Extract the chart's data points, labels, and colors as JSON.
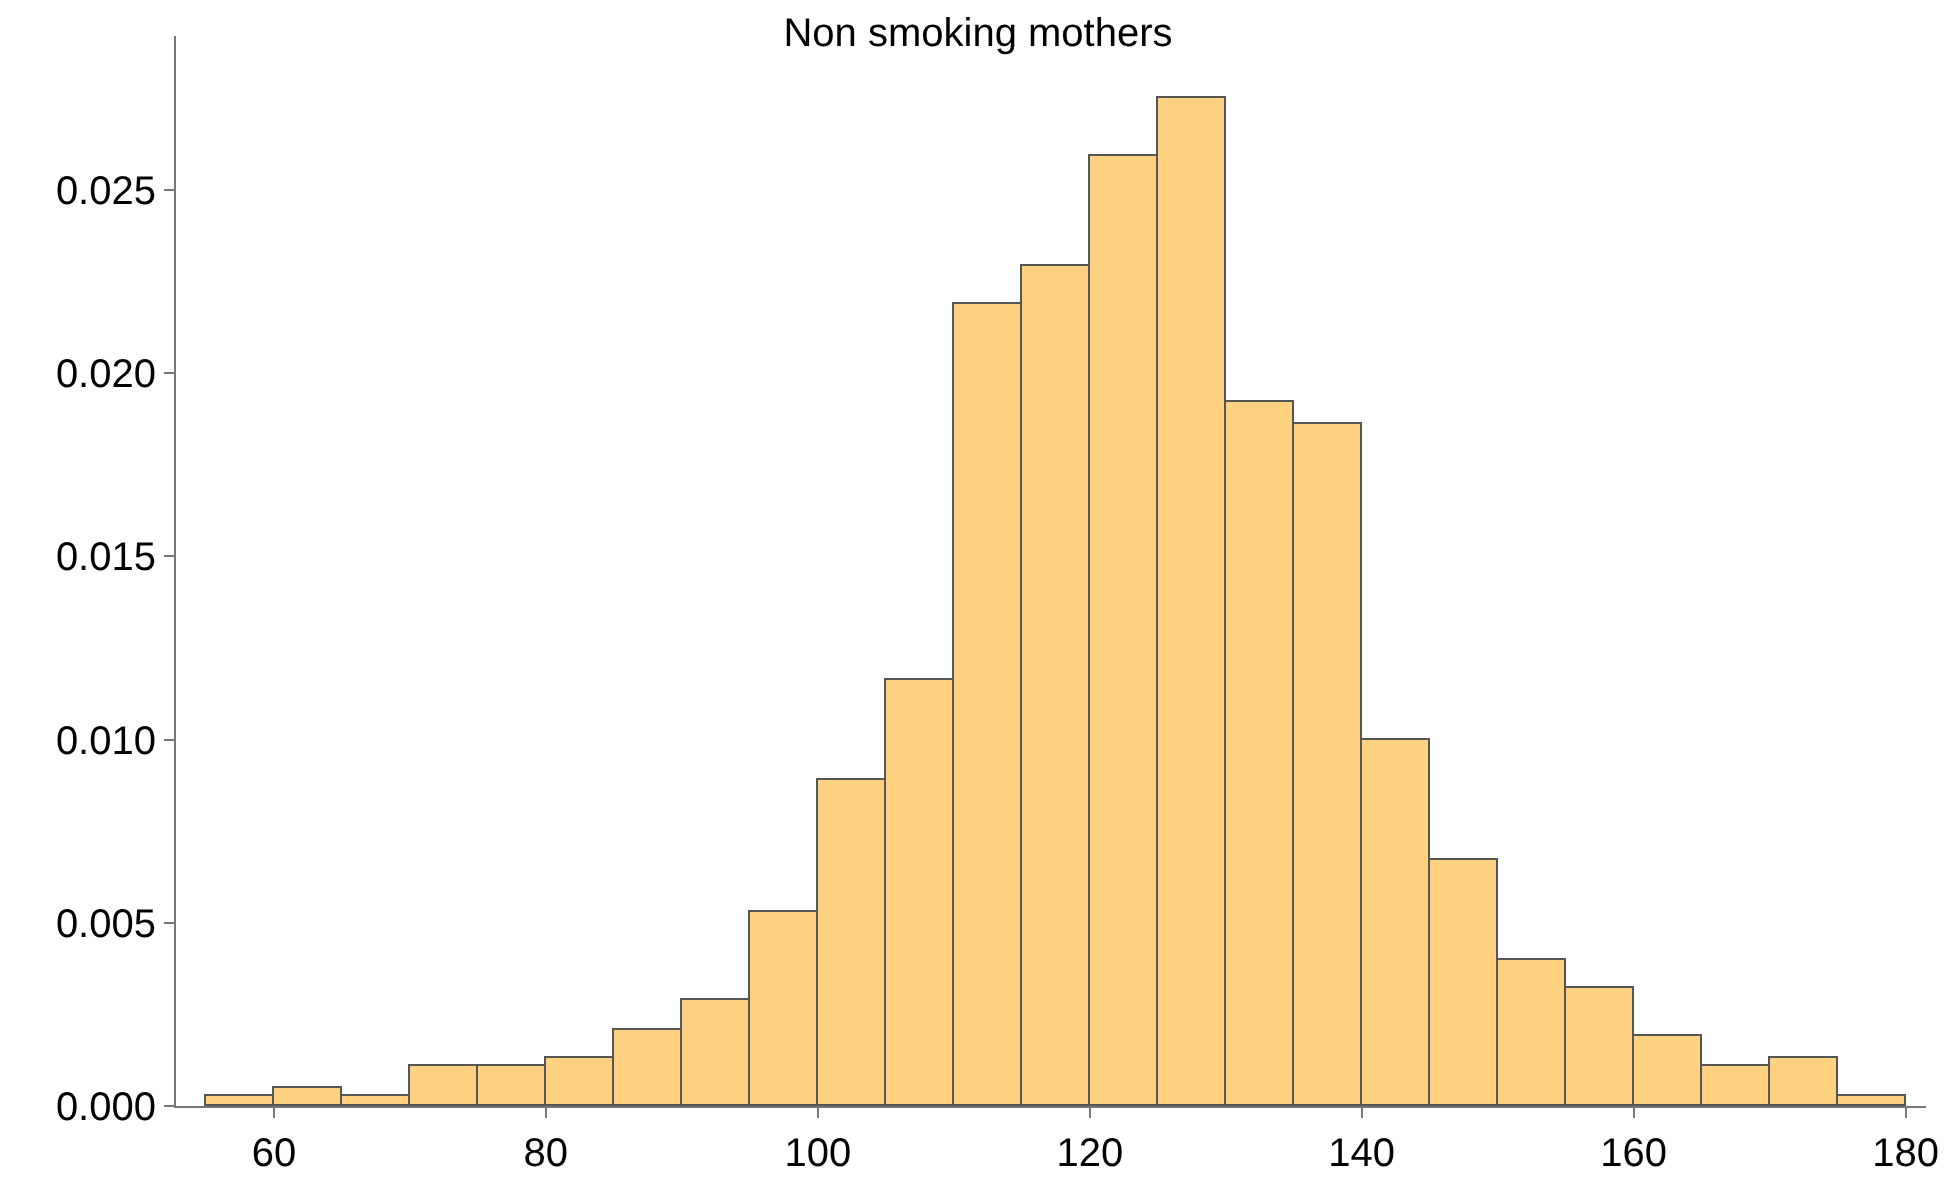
{
  "chart_data": {
    "type": "histogram",
    "title": "Non smoking mothers",
    "bins": [
      55,
      60,
      65,
      70,
      75,
      80,
      85,
      90,
      95,
      100,
      105,
      110,
      115,
      120,
      125,
      130,
      135,
      140,
      145,
      150,
      155,
      160,
      165,
      170,
      175,
      180
    ],
    "values": [
      0.0003,
      0.0005,
      0.0003,
      0.0011,
      0.0011,
      0.0013,
      0.0021,
      0.0029,
      0.0053,
      0.0089,
      0.0116,
      0.0219,
      0.0229,
      0.0259,
      0.0275,
      0.0192,
      0.0186,
      0.01,
      0.0067,
      0.004,
      0.0032,
      0.0019,
      0.0011,
      0.0013,
      0.0003
    ],
    "color": "#fdd17f",
    "xlim": [
      52.8,
      181.5
    ],
    "xticks": [
      60,
      80,
      100,
      120,
      140,
      160,
      180
    ],
    "ylim": [
      0,
      0.0292
    ],
    "yticks": [
      {
        "value": 0,
        "label": "0.000"
      },
      {
        "value": 0.005,
        "label": "0.005"
      },
      {
        "value": 0.01,
        "label": "0.010"
      },
      {
        "value": 0.015,
        "label": "0.015"
      },
      {
        "value": 0.02,
        "label": "0.020"
      },
      {
        "value": 0.025,
        "label": "0.025"
      }
    ],
    "grid": false
  }
}
